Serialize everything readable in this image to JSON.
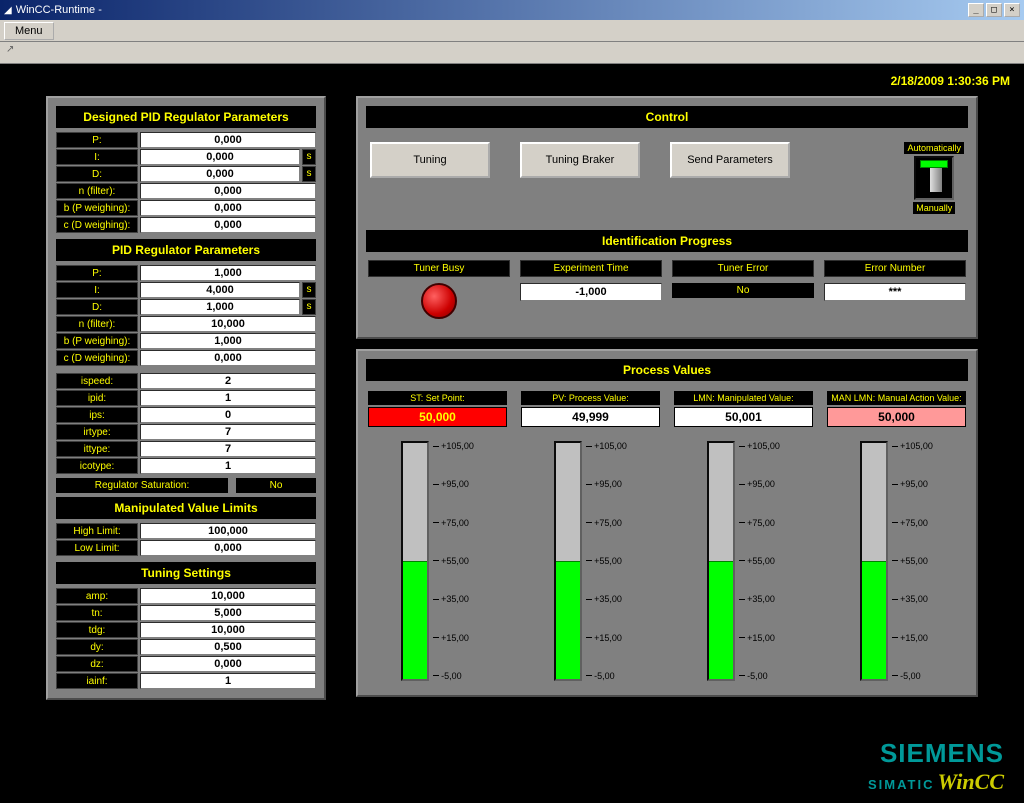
{
  "window": {
    "title": "WinCC-Runtime -",
    "menu": "Menu"
  },
  "datetime": "2/18/2009 1:30:36 PM",
  "designed_pid": {
    "title": "Designed PID Regulator Parameters",
    "rows": [
      {
        "label": "P:",
        "value": "0,000",
        "unit": ""
      },
      {
        "label": "I:",
        "value": "0,000",
        "unit": "s"
      },
      {
        "label": "D:",
        "value": "0,000",
        "unit": "s"
      },
      {
        "label": "n (filter):",
        "value": "0,000",
        "unit": ""
      },
      {
        "label": "b (P weighing):",
        "value": "0,000",
        "unit": ""
      },
      {
        "label": "c (D weighing):",
        "value": "0,000",
        "unit": ""
      }
    ]
  },
  "pid": {
    "title": "PID Regulator Parameters",
    "rows": [
      {
        "label": "P:",
        "value": "1,000",
        "unit": ""
      },
      {
        "label": "I:",
        "value": "4,000",
        "unit": "s"
      },
      {
        "label": "D:",
        "value": "1,000",
        "unit": "s"
      },
      {
        "label": "n (filter):",
        "value": "10,000",
        "unit": ""
      },
      {
        "label": "b (P weighing):",
        "value": "1,000",
        "unit": ""
      },
      {
        "label": "c (D weighing):",
        "value": "0,000",
        "unit": ""
      }
    ],
    "extra": [
      {
        "label": "ispeed:",
        "value": "2"
      },
      {
        "label": "ipid:",
        "value": "1"
      },
      {
        "label": "ips:",
        "value": "0"
      },
      {
        "label": "irtype:",
        "value": "7"
      },
      {
        "label": "ittype:",
        "value": "7"
      },
      {
        "label": "icotype:",
        "value": "1"
      }
    ],
    "sat_label": "Regulator Saturation:",
    "sat_value": "No"
  },
  "manip": {
    "title": "Manipulated Value Limits",
    "rows": [
      {
        "label": "High Limit:",
        "value": "100,000"
      },
      {
        "label": "Low Limit:",
        "value": "0,000"
      }
    ]
  },
  "tuning": {
    "title": "Tuning Settings",
    "rows": [
      {
        "label": "amp:",
        "value": "10,000"
      },
      {
        "label": "tn:",
        "value": "5,000"
      },
      {
        "label": "tdg:",
        "value": "10,000"
      },
      {
        "label": "dy:",
        "value": "0,500"
      },
      {
        "label": "dz:",
        "value": "0,000"
      },
      {
        "label": "iainf:",
        "value": "1"
      }
    ]
  },
  "control": {
    "title": "Control",
    "buttons": {
      "tuning": "Tuning",
      "braker": "Tuning Braker",
      "send": "Send Parameters"
    },
    "switch": {
      "auto": "Automatically",
      "manual": "Manually"
    }
  },
  "idprog": {
    "title": "Identification Progress",
    "cols": [
      {
        "head": "Tuner Busy",
        "type": "led"
      },
      {
        "head": "Experiment Time",
        "type": "white",
        "value": "-1,000"
      },
      {
        "head": "Tuner Error",
        "type": "black",
        "value": "No"
      },
      {
        "head": "Error Number",
        "type": "white",
        "value": "***"
      }
    ]
  },
  "process": {
    "title": "Process Values",
    "scale": [
      "+105,00",
      "+95,00",
      "+75,00",
      "+55,00",
      "+35,00",
      "+15,00",
      "-5,00"
    ],
    "scale_min": -5,
    "scale_max": 105,
    "cols": [
      {
        "head": "ST: Set Point:",
        "value": "50,000",
        "bg": "#ff0000",
        "fg": "#ffff00",
        "fill": 50
      },
      {
        "head": "PV: Process Value:",
        "value": "49,999",
        "bg": "#ffffff",
        "fg": "#000000",
        "fill": 49.999
      },
      {
        "head": "LMN: Manipulated Value:",
        "value": "50,001",
        "bg": "#ffffff",
        "fg": "#000000",
        "fill": 50.001
      },
      {
        "head": "MAN LMN: Manual Action Value:",
        "value": "50,000",
        "bg": "#ff9999",
        "fg": "#000000",
        "fill": 50
      }
    ]
  },
  "logo": {
    "siemens": "SIEMENS",
    "simatic": "SIMATIC",
    "wincc": "WinCC"
  }
}
